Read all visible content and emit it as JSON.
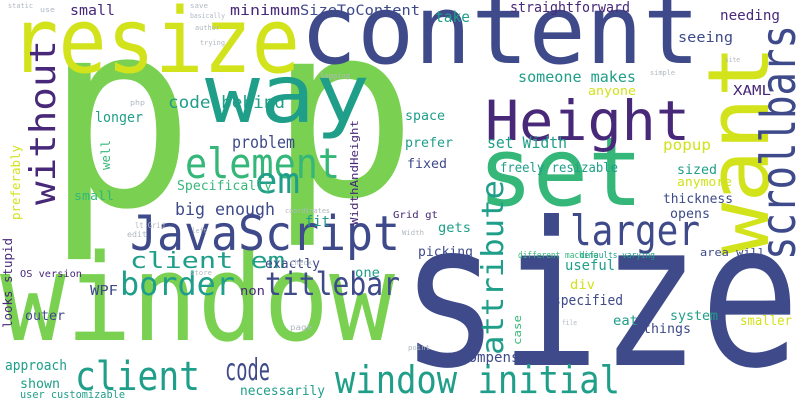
{
  "words": [
    "p",
    "p",
    "size",
    "window",
    "content",
    "resize",
    "way",
    "set",
    "Height",
    "want",
    "scrollbars",
    "JavaScript",
    "element",
    "larger",
    "window initial",
    "client",
    "em",
    "without",
    "attribute",
    "border",
    "titlebar",
    "code",
    "client em",
    "big enough",
    "code behind",
    "minimum",
    "SizeToContent",
    "straightforward",
    "take",
    "small",
    "needing",
    "seeing",
    "someone makes",
    "anyone",
    "XAML",
    "space",
    "prefer",
    "set Width",
    "popup",
    "problem",
    "longer",
    "fixed",
    "freely resizable",
    "sized",
    "anymore",
    "thickness",
    "opens",
    "Specifically",
    "Grid gt",
    "gets",
    "picking",
    "fit",
    "exactly",
    "one",
    "WPF",
    "non",
    "outer",
    "OS version",
    "approach",
    "shown",
    "user customizable",
    "compensate",
    "necessarily",
    "different machine",
    "defaults varying",
    "useful",
    "div",
    "specified",
    "eat",
    "things",
    "system",
    "smaller",
    "area will",
    "case",
    "WidthAndHeight",
    "preferably",
    "looks stupid",
    "well",
    "small",
    "static",
    "use",
    "author",
    "save",
    "basically",
    "trying",
    "logging",
    "php",
    "site",
    "point",
    "page",
    "file",
    "left",
    "store",
    "check",
    "Width",
    "simple",
    "coordinates",
    "lt Grid",
    "edit"
  ]
}
